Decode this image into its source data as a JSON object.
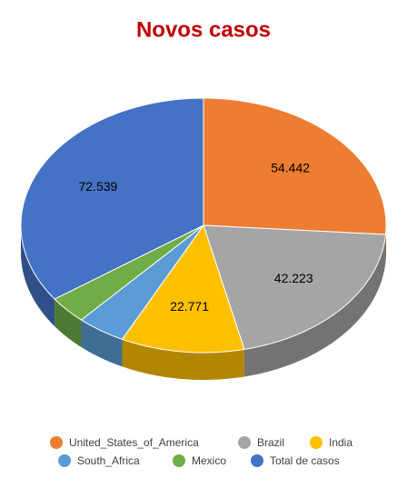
{
  "chart_data": {
    "type": "pie3d",
    "title": "Novos casos",
    "categories": [
      "United_States_of_America",
      "Brazil",
      "India",
      "South_Africa",
      "Mexico",
      "Total de casos"
    ],
    "values": [
      54442,
      42223,
      22771,
      9000,
      7300,
      72539
    ],
    "value_labels": [
      "54.442",
      "42.223",
      "22.771",
      null,
      null,
      "72.539"
    ],
    "colors": [
      "#ed7d31",
      "#a5a5a5",
      "#ffc000",
      "#5b9bd5",
      "#70ad47",
      "#4472c4"
    ],
    "legend": "bottom"
  }
}
